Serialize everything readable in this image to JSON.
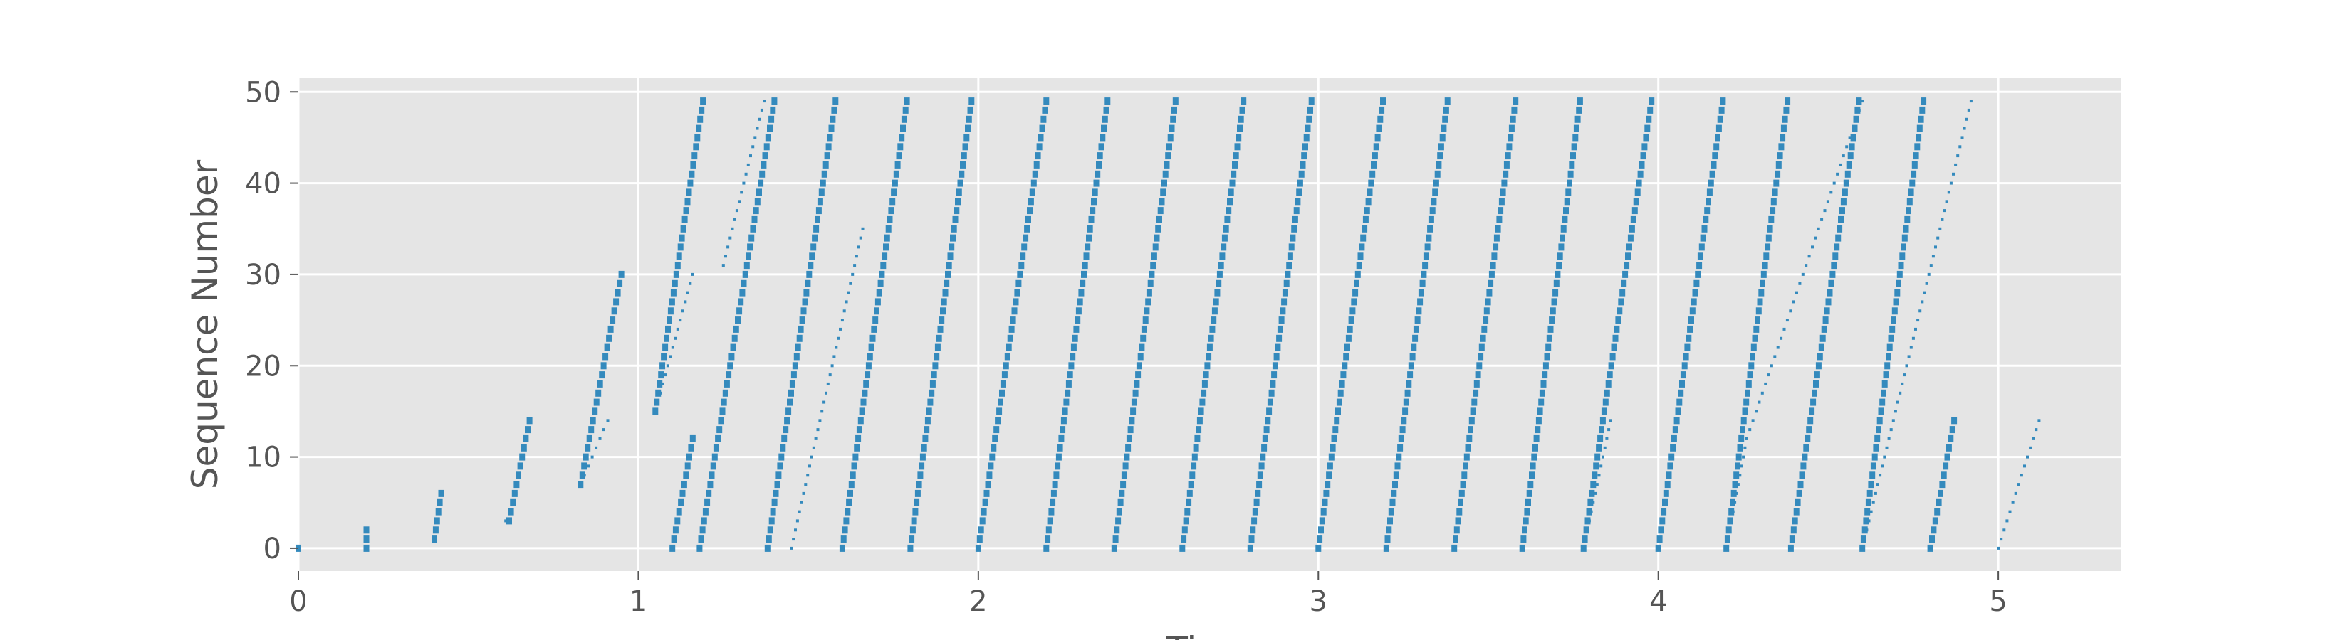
{
  "chart_data": {
    "type": "scatter",
    "title": "",
    "xlabel": "Time",
    "ylabel": "Sequence Number",
    "xlim": [
      0,
      5.36
    ],
    "ylim": [
      -2.5,
      51.5
    ],
    "xticks": [
      0,
      1,
      2,
      3,
      4,
      5
    ],
    "yticks": [
      0,
      10,
      20,
      30,
      40,
      50
    ],
    "grid": true,
    "legend": "none",
    "colors": {
      "plot_bg": "#e5e5e5",
      "grid": "#ffffff",
      "marker": "#348abd",
      "text": "#555555"
    },
    "series": [
      {
        "role": "dense",
        "segments": [
          [
            0.0,
            0,
            0.0,
            0
          ],
          [
            0.2,
            0,
            0.2,
            2
          ],
          [
            0.4,
            1,
            0.42,
            6
          ],
          [
            0.62,
            3,
            0.68,
            14
          ],
          [
            0.83,
            7,
            0.95,
            30
          ],
          [
            1.05,
            15,
            1.19,
            49
          ],
          [
            1.1,
            0,
            1.16,
            12
          ],
          [
            1.18,
            0,
            1.4,
            49
          ],
          [
            1.38,
            0,
            1.58,
            49
          ],
          [
            1.6,
            0,
            1.79,
            49
          ],
          [
            1.8,
            0,
            1.98,
            49
          ],
          [
            2.0,
            0,
            2.2,
            49
          ],
          [
            2.2,
            0,
            2.38,
            49
          ],
          [
            2.4,
            0,
            2.58,
            49
          ],
          [
            2.6,
            0,
            2.78,
            49
          ],
          [
            2.8,
            0,
            2.98,
            49
          ],
          [
            3.0,
            0,
            3.19,
            49
          ],
          [
            3.2,
            0,
            3.38,
            49
          ],
          [
            3.4,
            0,
            3.58,
            49
          ],
          [
            3.6,
            0,
            3.77,
            49
          ],
          [
            3.78,
            0,
            3.98,
            49
          ],
          [
            4.0,
            0,
            4.19,
            49
          ],
          [
            4.2,
            0,
            4.38,
            49
          ],
          [
            4.39,
            0,
            4.59,
            49
          ],
          [
            4.6,
            0,
            4.78,
            49
          ],
          [
            4.8,
            0,
            4.87,
            14
          ]
        ]
      },
      {
        "role": "sparse",
        "segments": [
          [
            0.61,
            3,
            0.64,
            6
          ],
          [
            0.83,
            7,
            0.91,
            14
          ],
          [
            1.05,
            15,
            1.16,
            30
          ],
          [
            1.25,
            31,
            1.37,
            49
          ],
          [
            1.45,
            0,
            1.66,
            35
          ],
          [
            3.78,
            0,
            3.86,
            14
          ],
          [
            4.2,
            0,
            4.26,
            12
          ],
          [
            4.26,
            12,
            4.6,
            49
          ],
          [
            4.6,
            0,
            4.92,
            49
          ],
          [
            5.0,
            0,
            5.12,
            14
          ]
        ]
      }
    ]
  }
}
